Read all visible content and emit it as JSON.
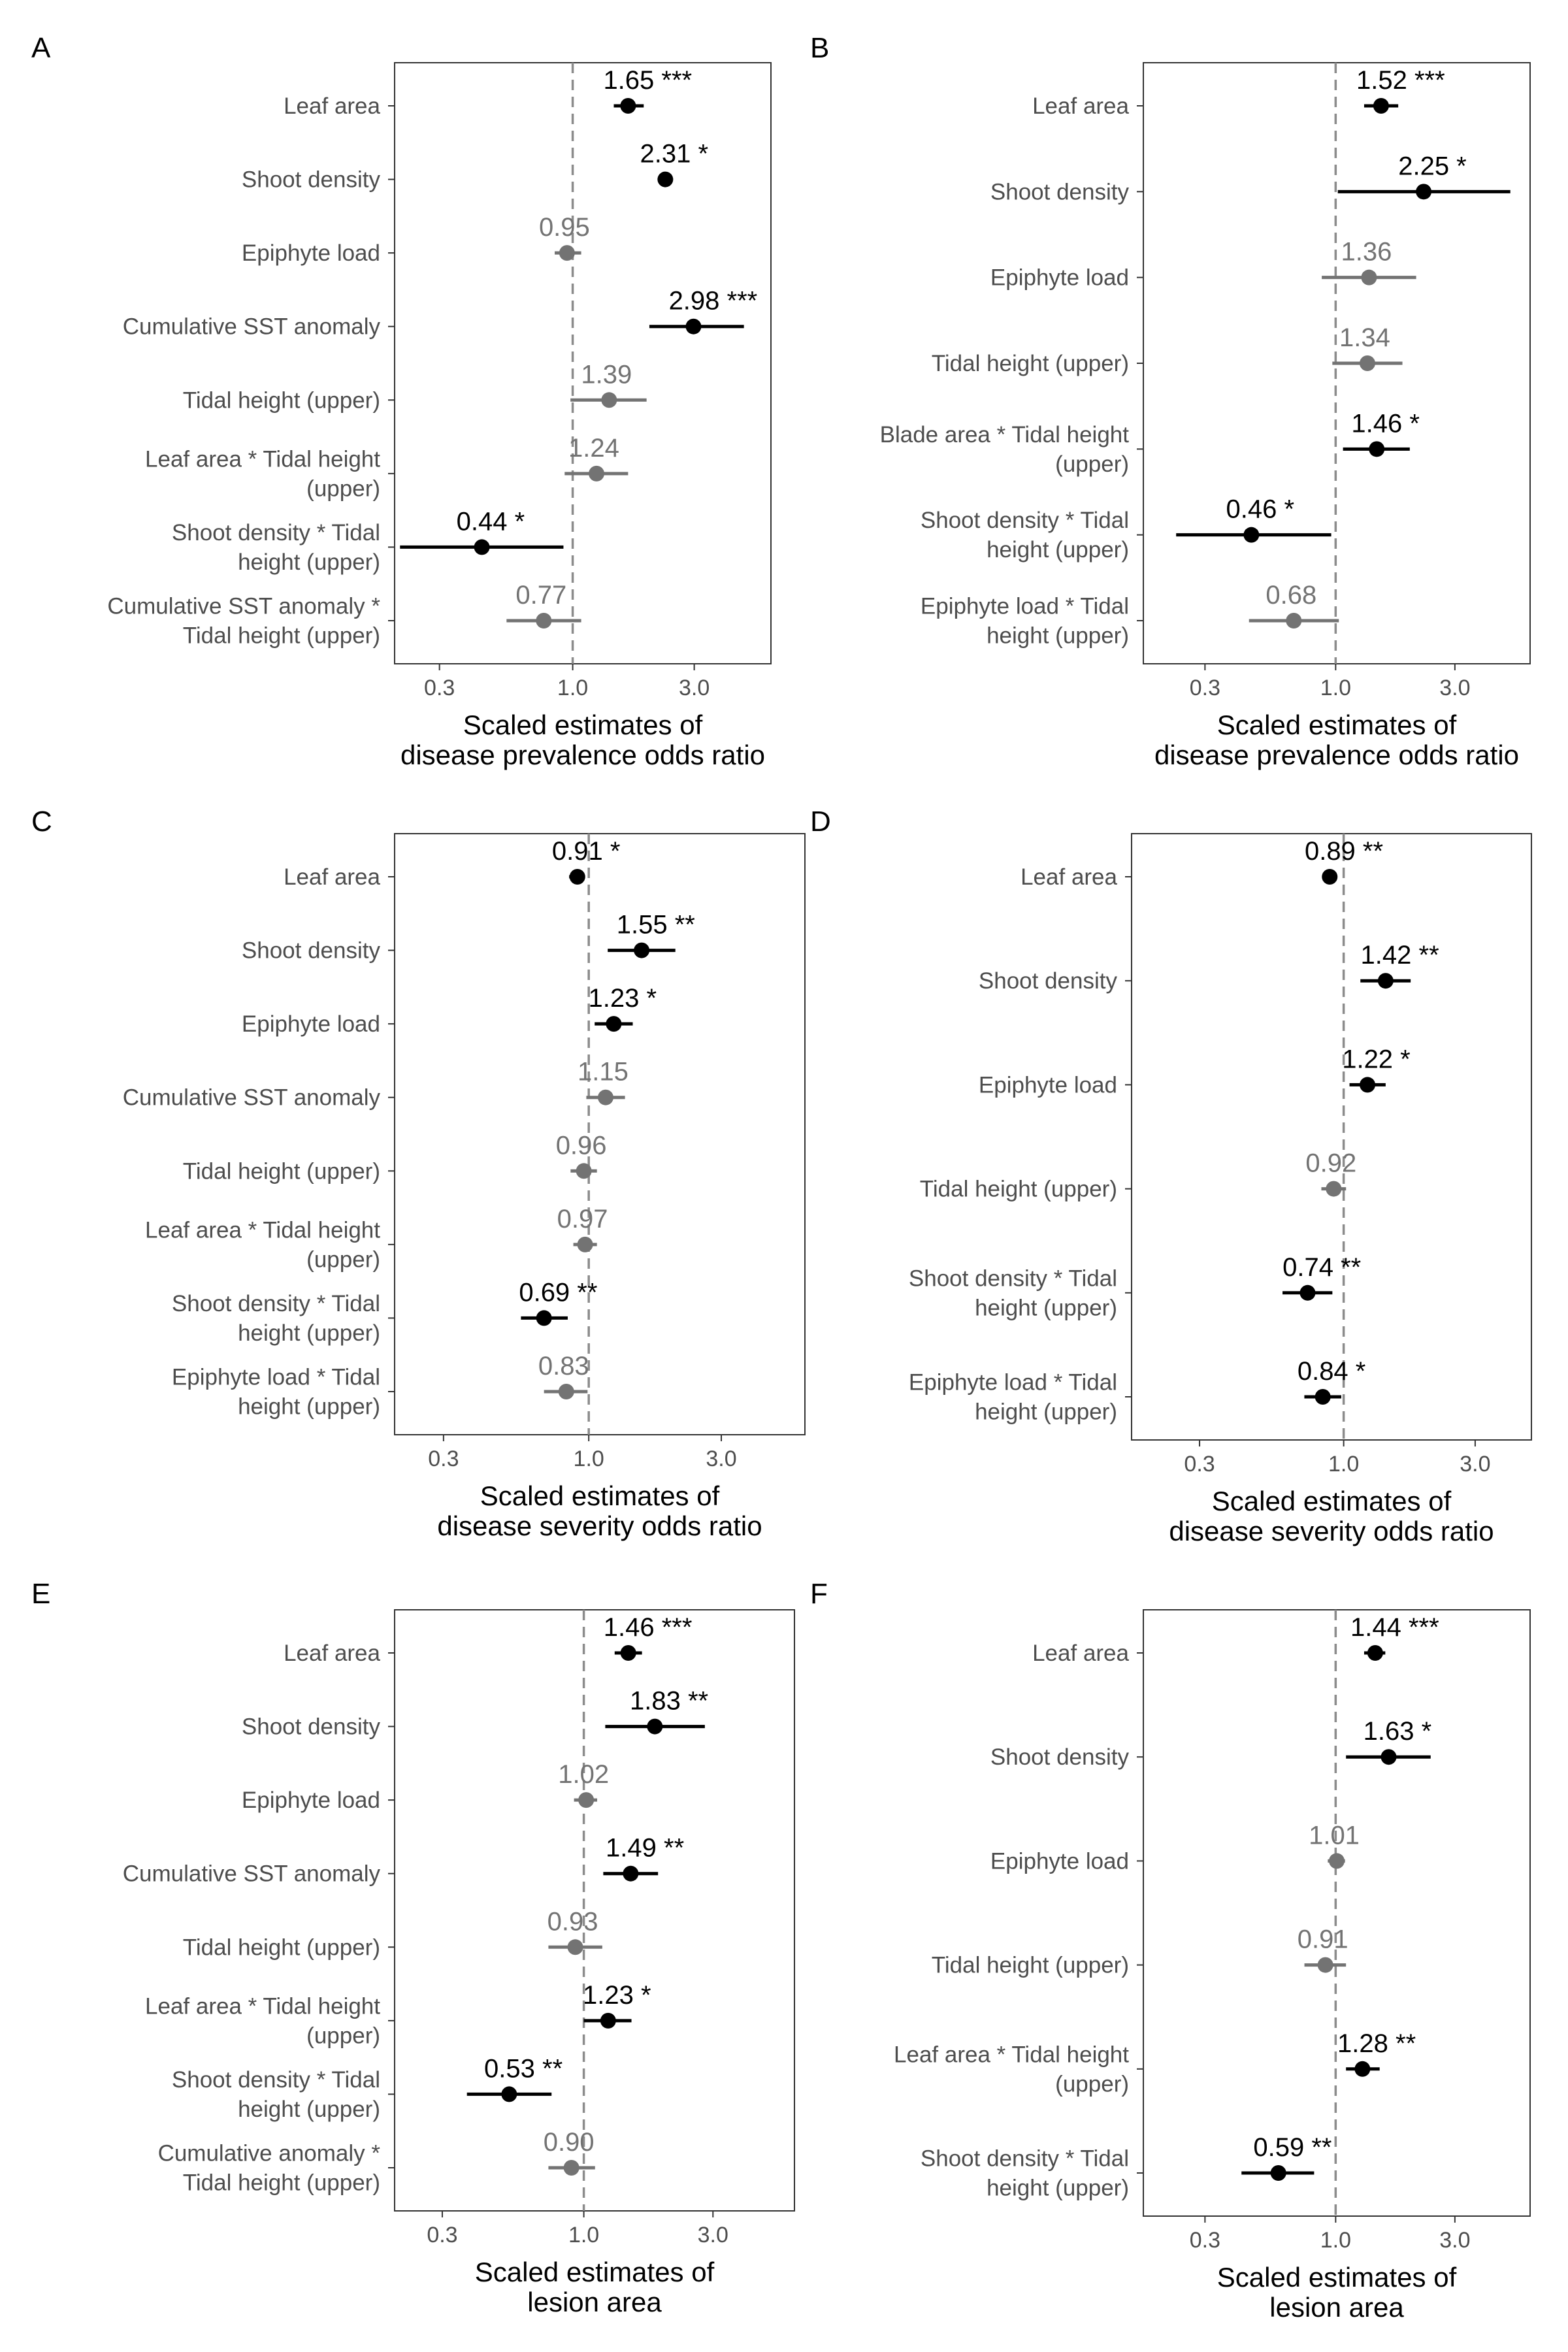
{
  "chart_data": [
    {
      "panel": "A",
      "type": "scatter",
      "subtype": "forest-plot",
      "x_scale": "log",
      "xlim": [
        0.2,
        6.0
      ],
      "x_ticks": [
        0.3,
        1.0,
        3.0
      ],
      "x_tick_labels": [
        "0.3",
        "1.0",
        "3.0"
      ],
      "reference_line": 1.0,
      "xlabel": [
        "Scaled estimates of",
        "disease prevalence odds ratio"
      ],
      "terms": [
        {
          "label": [
            "Leaf area"
          ],
          "estimate": 1.65,
          "low": 1.45,
          "high": 1.9,
          "value_label": "1.65 ***",
          "significant": true
        },
        {
          "label": [
            "Shoot density"
          ],
          "estimate": 2.31,
          "low": 2.31,
          "high": 2.31,
          "value_label": "2.31 *",
          "significant": true
        },
        {
          "label": [
            "Epiphyte load"
          ],
          "estimate": 0.95,
          "low": 0.85,
          "high": 1.08,
          "value_label": "0.95",
          "significant": false
        },
        {
          "label": [
            "Cumulative SST anomaly"
          ],
          "estimate": 2.98,
          "low": 2.0,
          "high": 4.7,
          "value_label": "2.98 ***",
          "significant": true
        },
        {
          "label": [
            "Tidal height (upper)"
          ],
          "estimate": 1.39,
          "low": 0.98,
          "high": 1.95,
          "value_label": "1.39",
          "significant": false
        },
        {
          "label": [
            "Leaf area * Tidal height",
            "(upper)"
          ],
          "estimate": 1.24,
          "low": 0.93,
          "high": 1.65,
          "value_label": "1.24",
          "significant": false
        },
        {
          "label": [
            "Shoot density * Tidal",
            "height (upper)"
          ],
          "estimate": 0.44,
          "low": 0.21,
          "high": 0.92,
          "value_label": "0.44 *",
          "significant": true
        },
        {
          "label": [
            "Cumulative SST anomaly *",
            "Tidal height (upper)"
          ],
          "estimate": 0.77,
          "low": 0.55,
          "high": 1.08,
          "value_label": "0.77",
          "significant": false
        }
      ]
    },
    {
      "panel": "B",
      "type": "scatter",
      "subtype": "forest-plot",
      "x_scale": "log",
      "xlim": [
        0.17,
        6.0
      ],
      "x_ticks": [
        0.3,
        1.0,
        3.0
      ],
      "x_tick_labels": [
        "0.3",
        "1.0",
        "3.0"
      ],
      "reference_line": 1.0,
      "xlabel": [
        "Scaled estimates of",
        "disease prevalence odds ratio"
      ],
      "terms": [
        {
          "label": [
            "Leaf area"
          ],
          "estimate": 1.52,
          "low": 1.3,
          "high": 1.78,
          "value_label": "1.52 ***",
          "significant": true
        },
        {
          "label": [
            "Shoot density"
          ],
          "estimate": 2.25,
          "low": 1.02,
          "high": 5.0,
          "value_label": "2.25 *",
          "significant": true
        },
        {
          "label": [
            "Epiphyte load"
          ],
          "estimate": 1.36,
          "low": 0.88,
          "high": 2.1,
          "value_label": "1.36",
          "significant": false
        },
        {
          "label": [
            "Tidal height (upper)"
          ],
          "estimate": 1.34,
          "low": 0.97,
          "high": 1.85,
          "value_label": "1.34",
          "significant": false
        },
        {
          "label": [
            "Blade area * Tidal height",
            "(upper)"
          ],
          "estimate": 1.46,
          "low": 1.07,
          "high": 1.98,
          "value_label": "1.46 *",
          "significant": true
        },
        {
          "label": [
            "Shoot density * Tidal",
            "height (upper)"
          ],
          "estimate": 0.46,
          "low": 0.23,
          "high": 0.96,
          "value_label": "0.46 *",
          "significant": true
        },
        {
          "label": [
            "Epiphyte load * Tidal",
            "height (upper)"
          ],
          "estimate": 0.68,
          "low": 0.45,
          "high": 1.03,
          "value_label": "0.68",
          "significant": false
        }
      ]
    },
    {
      "panel": "C",
      "type": "scatter",
      "subtype": "forest-plot",
      "x_scale": "log",
      "xlim": [
        0.2,
        6.0
      ],
      "x_ticks": [
        0.3,
        1.0,
        3.0
      ],
      "x_tick_labels": [
        "0.3",
        "1.0",
        "3.0"
      ],
      "reference_line": 1.0,
      "xlabel": [
        "Scaled estimates of",
        "disease severity odds ratio"
      ],
      "terms": [
        {
          "label": [
            "Leaf area"
          ],
          "estimate": 0.91,
          "low": 0.85,
          "high": 0.97,
          "value_label": "0.91 *",
          "significant": true
        },
        {
          "label": [
            "Shoot density"
          ],
          "estimate": 1.55,
          "low": 1.17,
          "high": 2.05,
          "value_label": "1.55 **",
          "significant": true
        },
        {
          "label": [
            "Epiphyte load"
          ],
          "estimate": 1.23,
          "low": 1.05,
          "high": 1.44,
          "value_label": "1.23 *",
          "significant": true
        },
        {
          "label": [
            "Cumulative SST anomaly"
          ],
          "estimate": 1.15,
          "low": 0.98,
          "high": 1.35,
          "value_label": "1.15",
          "significant": false
        },
        {
          "label": [
            "Tidal height (upper)"
          ],
          "estimate": 0.96,
          "low": 0.86,
          "high": 1.07,
          "value_label": "0.96",
          "significant": false
        },
        {
          "label": [
            "Leaf area * Tidal height",
            "(upper)"
          ],
          "estimate": 0.97,
          "low": 0.88,
          "high": 1.07,
          "value_label": "0.97",
          "significant": false
        },
        {
          "label": [
            "Shoot density * Tidal",
            "height (upper)"
          ],
          "estimate": 0.69,
          "low": 0.57,
          "high": 0.84,
          "value_label": "0.69 **",
          "significant": true
        },
        {
          "label": [
            "Epiphyte load * Tidal",
            "height (upper)"
          ],
          "estimate": 0.83,
          "low": 0.69,
          "high": 0.99,
          "value_label": "0.83",
          "significant": false
        }
      ]
    },
    {
      "panel": "D",
      "type": "scatter",
      "subtype": "forest-plot",
      "x_scale": "log",
      "xlim": [
        0.17,
        4.8
      ],
      "x_ticks": [
        0.3,
        1.0,
        3.0
      ],
      "x_tick_labels": [
        "0.3",
        "1.0",
        "3.0"
      ],
      "reference_line": 1.0,
      "xlabel": [
        "Scaled estimates of",
        "disease severity odds ratio"
      ],
      "terms": [
        {
          "label": [
            "Leaf area"
          ],
          "estimate": 0.89,
          "low": 0.84,
          "high": 0.94,
          "value_label": "0.89 **",
          "significant": true
        },
        {
          "label": [
            "Shoot density"
          ],
          "estimate": 1.42,
          "low": 1.15,
          "high": 1.75,
          "value_label": "1.42 **",
          "significant": true
        },
        {
          "label": [
            "Epiphyte load"
          ],
          "estimate": 1.22,
          "low": 1.05,
          "high": 1.42,
          "value_label": "1.22 *",
          "significant": true
        },
        {
          "label": [
            "Tidal height (upper)"
          ],
          "estimate": 0.92,
          "low": 0.83,
          "high": 1.02,
          "value_label": "0.92",
          "significant": false
        },
        {
          "label": [
            "Shoot density * Tidal",
            "height (upper)"
          ],
          "estimate": 0.74,
          "low": 0.6,
          "high": 0.91,
          "value_label": "0.74 **",
          "significant": true
        },
        {
          "label": [
            "Epiphyte load * Tidal",
            "height (upper)"
          ],
          "estimate": 0.84,
          "low": 0.72,
          "high": 0.98,
          "value_label": "0.84 *",
          "significant": true
        }
      ]
    },
    {
      "panel": "E",
      "type": "scatter",
      "subtype": "forest-plot",
      "x_scale": "log",
      "xlim": [
        0.2,
        6.0
      ],
      "x_ticks": [
        0.3,
        1.0,
        3.0
      ],
      "x_tick_labels": [
        "0.3",
        "1.0",
        "3.0"
      ],
      "reference_line": 1.0,
      "xlabel": [
        "Scaled estimates of",
        "lesion area"
      ],
      "terms": [
        {
          "label": [
            "Leaf area"
          ],
          "estimate": 1.46,
          "low": 1.3,
          "high": 1.64,
          "value_label": "1.46 ***",
          "significant": true
        },
        {
          "label": [
            "Shoot density"
          ],
          "estimate": 1.83,
          "low": 1.2,
          "high": 2.8,
          "value_label": "1.83 **",
          "significant": true
        },
        {
          "label": [
            "Epiphyte load"
          ],
          "estimate": 1.02,
          "low": 0.92,
          "high": 1.12,
          "value_label": "1.02",
          "significant": false
        },
        {
          "label": [
            "Cumulative SST anomaly"
          ],
          "estimate": 1.49,
          "low": 1.18,
          "high": 1.88,
          "value_label": "1.49 **",
          "significant": true
        },
        {
          "label": [
            "Tidal height (upper)"
          ],
          "estimate": 0.93,
          "low": 0.74,
          "high": 1.17,
          "value_label": "0.93",
          "significant": false
        },
        {
          "label": [
            "Leaf area * Tidal height",
            "(upper)"
          ],
          "estimate": 1.23,
          "low": 1.0,
          "high": 1.5,
          "value_label": "1.23 *",
          "significant": true
        },
        {
          "label": [
            "Shoot density * Tidal",
            "height (upper)"
          ],
          "estimate": 0.53,
          "low": 0.37,
          "high": 0.76,
          "value_label": "0.53 **",
          "significant": true
        },
        {
          "label": [
            "Cumulative anomaly *",
            "Tidal height (upper)"
          ],
          "estimate": 0.9,
          "low": 0.74,
          "high": 1.1,
          "value_label": "0.90",
          "significant": false
        }
      ]
    },
    {
      "panel": "F",
      "type": "scatter",
      "subtype": "forest-plot",
      "x_scale": "log",
      "xlim": [
        0.17,
        6.0
      ],
      "x_ticks": [
        0.3,
        1.0,
        3.0
      ],
      "x_tick_labels": [
        "0.3",
        "1.0",
        "3.0"
      ],
      "reference_line": 1.0,
      "xlabel": [
        "Scaled estimates of",
        "lesion area"
      ],
      "terms": [
        {
          "label": [
            "Leaf area"
          ],
          "estimate": 1.44,
          "low": 1.3,
          "high": 1.58,
          "value_label": "1.44 ***",
          "significant": true
        },
        {
          "label": [
            "Shoot density"
          ],
          "estimate": 1.63,
          "low": 1.1,
          "high": 2.4,
          "value_label": "1.63 *",
          "significant": true
        },
        {
          "label": [
            "Epiphyte load"
          ],
          "estimate": 1.01,
          "low": 0.93,
          "high": 1.09,
          "value_label": "1.01",
          "significant": false
        },
        {
          "label": [
            "Tidal height (upper)"
          ],
          "estimate": 0.91,
          "low": 0.75,
          "high": 1.1,
          "value_label": "0.91",
          "significant": false
        },
        {
          "label": [
            "Leaf area * Tidal height",
            "(upper)"
          ],
          "estimate": 1.28,
          "low": 1.1,
          "high": 1.5,
          "value_label": "1.28 **",
          "significant": true
        },
        {
          "label": [
            "Shoot density * Tidal",
            "height (upper)"
          ],
          "estimate": 0.59,
          "low": 0.42,
          "high": 0.82,
          "value_label": "0.59 **",
          "significant": true
        }
      ]
    }
  ],
  "colors": {
    "significant": "#000000",
    "not_significant": "#737373",
    "reference_line": "#8c8c8c",
    "axis_text": "#4d4d4d"
  }
}
